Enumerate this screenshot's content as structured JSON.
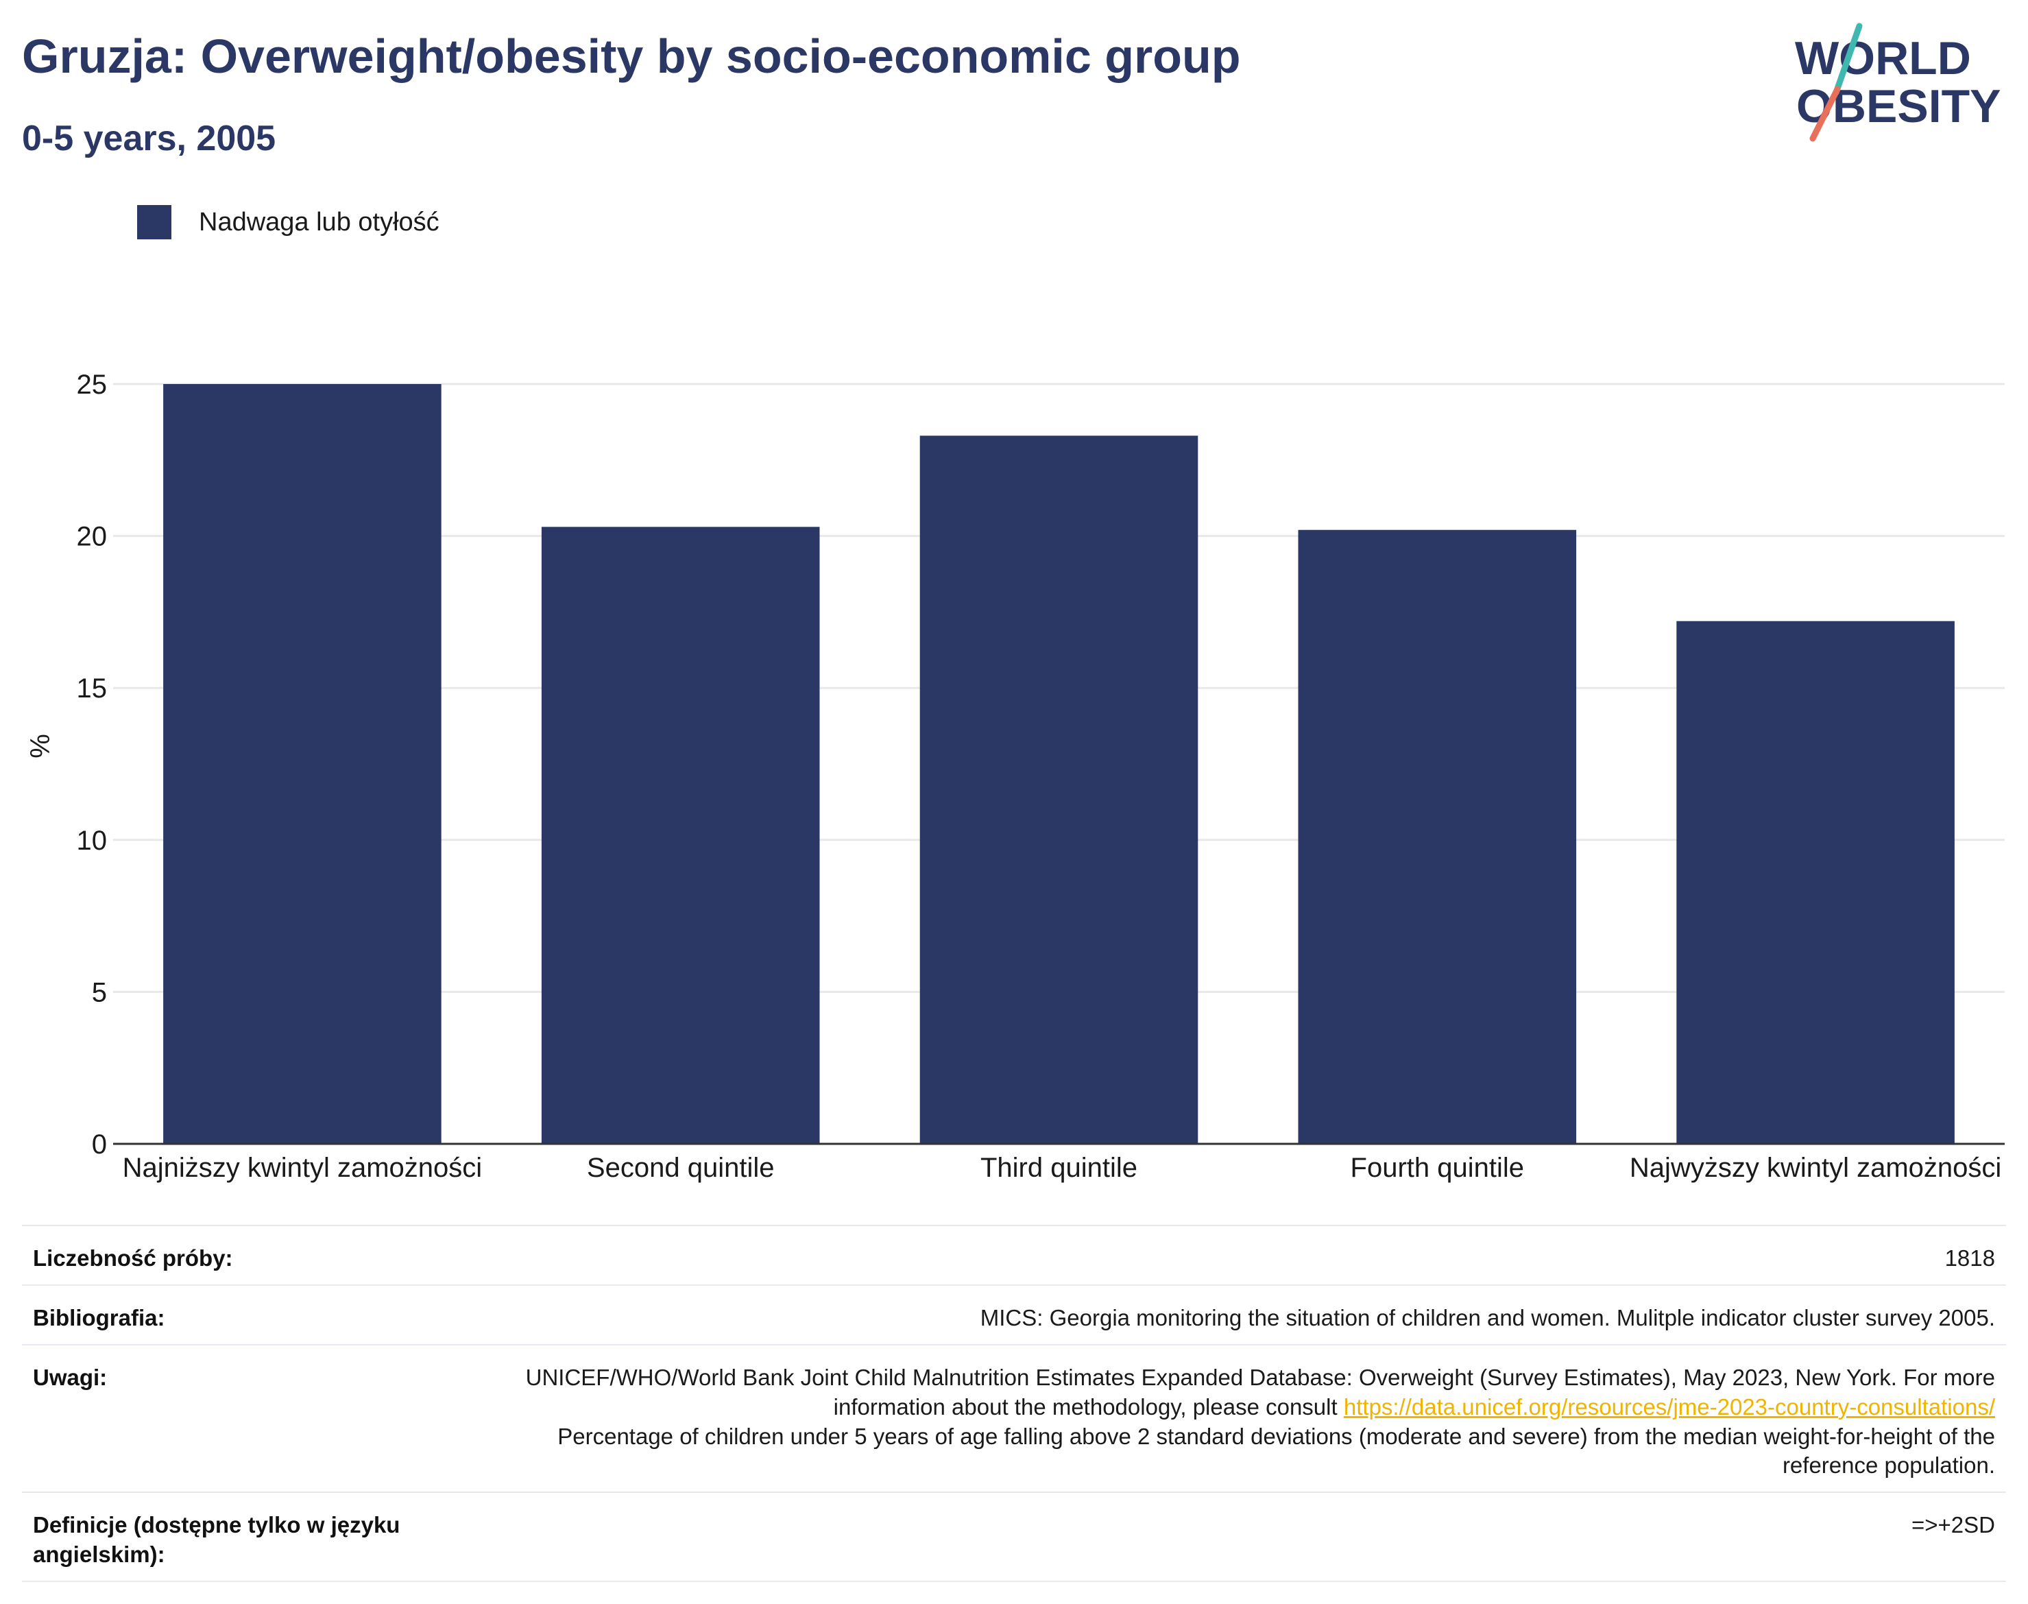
{
  "header": {
    "title": "Gruzja: Overweight/obesity by socio-economic group",
    "subtitle": "0-5 years, 2005"
  },
  "logo": {
    "line1": "WORLD",
    "line2": "OBESITY",
    "colors": {
      "text": "#2b3764",
      "slash_teal": "#3fb8b0",
      "slash_coral": "#e8705a"
    }
  },
  "colors": {
    "bar": "#2b3764",
    "title": "#2b3764",
    "grid": "#e8e8e8",
    "axis": "#333333",
    "link": "#f0b400"
  },
  "chart_data": {
    "type": "bar",
    "title": "Gruzja: Overweight/obesity by socio-economic group",
    "subtitle": "0-5 years, 2005",
    "categories": [
      "Najniższy kwintyl zamożności",
      "Second quintile",
      "Third quintile",
      "Fourth quintile",
      "Najwyższy kwintyl zamożności"
    ],
    "series": [
      {
        "name": "Nadwaga lub otyłość",
        "values": [
          25.0,
          20.3,
          23.3,
          20.2,
          17.2
        ]
      }
    ],
    "xlabel": "",
    "ylabel": "%",
    "ylim": [
      0,
      25
    ],
    "yticks": [
      0,
      5,
      10,
      15,
      20,
      25
    ],
    "grid": true,
    "legend": "top-left"
  },
  "info": {
    "rows": [
      {
        "key": "Liczebność próby:",
        "value": "1818"
      },
      {
        "key": "Bibliografia:",
        "value": "MICS: Georgia monitoring the situation of children and women. Mulitple indicator cluster survey 2005."
      },
      {
        "key": "Uwagi:",
        "value_pre": "UNICEF/WHO/World Bank Joint Child Malnutrition Estimates Expanded Database: Overweight (Survey Estimates), May 2023, New York. For more information about the methodology, please consult ",
        "link": "https://data.unicef.org/resources/jme-2023-country-consultations/",
        "value_post": "Percentage of children under 5 years of age falling above 2 standard deviations (moderate and severe) from the median weight-for-height of the reference population."
      },
      {
        "key": "Definicje (dostępne tylko w języku angielskim):",
        "value": "=>+2SD"
      }
    ]
  }
}
